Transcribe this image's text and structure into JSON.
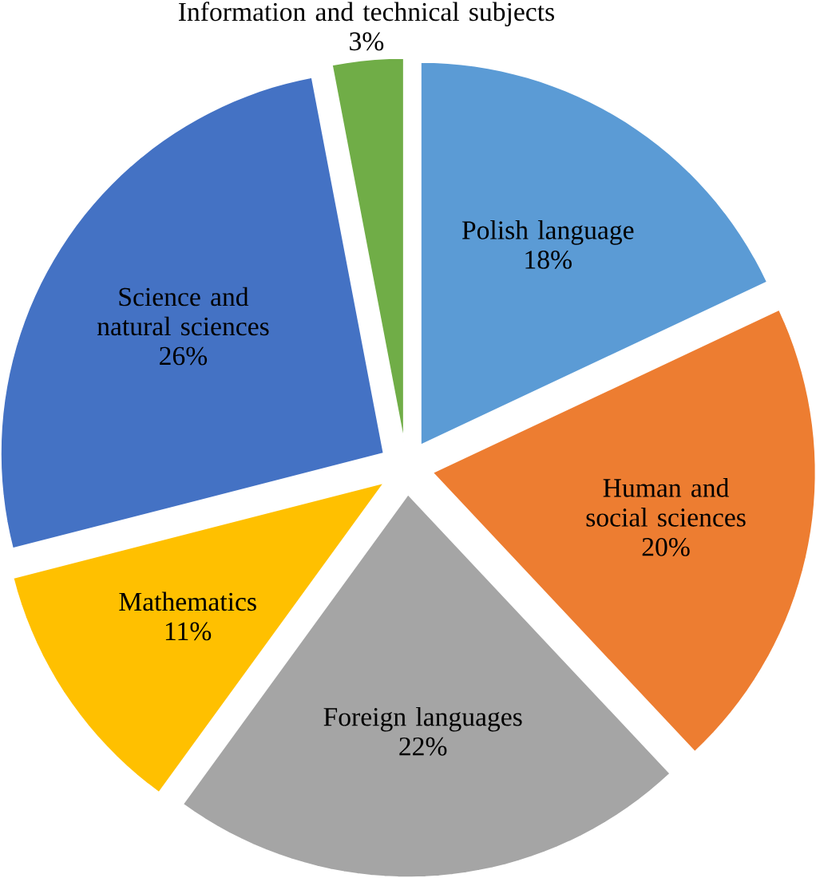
{
  "chart_data": {
    "type": "pie",
    "categories": [
      "Polish language",
      "Human and social sciences",
      "Foreign languages",
      "Mathematics",
      "Science and natural sciences",
      "Information and technical subjects"
    ],
    "values": [
      18,
      20,
      22,
      11,
      26,
      3
    ],
    "value_labels": [
      "18%",
      "20%",
      "22%",
      "11%",
      "26%",
      "3%"
    ],
    "colors": [
      "#5b9bd5",
      "#ed7d31",
      "#a5a5a5",
      "#ffc000",
      "#4472c4",
      "#70ad47"
    ]
  }
}
